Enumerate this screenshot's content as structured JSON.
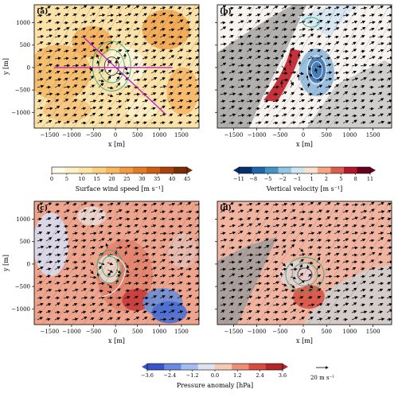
{
  "chart_data": [
    {
      "type": "heatmap",
      "panel": "(a)",
      "xlabel": "x [m]",
      "ylabel": "y [m]",
      "xticks": [
        "-1500",
        "-1000",
        "-500",
        "0",
        "500",
        "1000",
        "1500"
      ],
      "yticks": [
        "1000",
        "500",
        "0",
        "-500",
        "-1000"
      ],
      "xlim": [
        -1850,
        1900
      ],
      "ylim": [
        -1350,
        1400
      ],
      "colorbar": {
        "label": "Surface wind speed [m s⁻¹]",
        "ticks": [
          "0",
          "5",
          "10",
          "15",
          "20",
          "25",
          "30",
          "35",
          "40",
          "45"
        ],
        "range": [
          0,
          45
        ],
        "colors": [
          "#fffbe8",
          "#fdf1c8",
          "#fde4a4",
          "#fbd07f",
          "#f7b75e",
          "#f19a3f",
          "#e47b25",
          "#cf5d12",
          "#a9420b",
          "#7a2d06"
        ]
      },
      "overlay": "magenta cross-section lines and green/dark contours near the origin"
    },
    {
      "type": "heatmap",
      "panel": "(b)",
      "xlabel": "x [m]",
      "xticks": [
        "-1500",
        "-1000",
        "-500",
        "0",
        "500",
        "1000",
        "1500"
      ],
      "yticks": [
        "1000",
        "500",
        "0",
        "-500",
        "-1000"
      ],
      "xlim": [
        -1850,
        1900
      ],
      "ylim": [
        -1350,
        1400
      ],
      "colorbar": {
        "label": "Vertical velocity [m s⁻¹]",
        "ticks": [
          "−11",
          "−8",
          "−5",
          "−2",
          "−1",
          "1",
          "2",
          "5",
          "8",
          "11"
        ],
        "range": [
          -11,
          11
        ],
        "colors": [
          "#08306b",
          "#2166ac",
          "#4393c3",
          "#92c5de",
          "#d1e5f0",
          "#fbe0d0",
          "#f4a582",
          "#d6604d",
          "#b2182b",
          "#67001f"
        ]
      }
    },
    {
      "type": "heatmap",
      "panel": "(c)",
      "xlabel": "x [m]",
      "ylabel": "y [m]",
      "xticks": [
        "-1500",
        "-1000",
        "-500",
        "0",
        "500",
        "1000",
        "1500"
      ],
      "yticks": [
        "1000",
        "500",
        "0",
        "-500",
        "-1000"
      ],
      "xlim": [
        -1850,
        1900
      ],
      "ylim": [
        -1350,
        1400
      ]
    },
    {
      "type": "heatmap",
      "panel": "(d)",
      "xlabel": "x [m]",
      "xticks": [
        "-1500",
        "-1000",
        "-500",
        "0",
        "500",
        "1000",
        "1500"
      ],
      "yticks": [
        "1000",
        "500",
        "0",
        "-500",
        "-1000"
      ],
      "xlim": [
        -1850,
        1900
      ],
      "ylim": [
        -1350,
        1400
      ]
    }
  ],
  "shared_colorbar": {
    "label": "Pressure anomaly [hPa]",
    "ticks": [
      "−3.6",
      "−2.4",
      "−1.2",
      "0.0",
      "1.2",
      "2.4",
      "3.6"
    ],
    "range": [
      -3.6,
      3.6
    ],
    "colors": [
      "#3a55c8",
      "#6a8be0",
      "#a3bdf0",
      "#dde3ee",
      "#f5c9b4",
      "#eb8f76",
      "#d94b3f",
      "#b3262a"
    ]
  },
  "reference_vector": {
    "label": "20 m s⁻¹"
  }
}
